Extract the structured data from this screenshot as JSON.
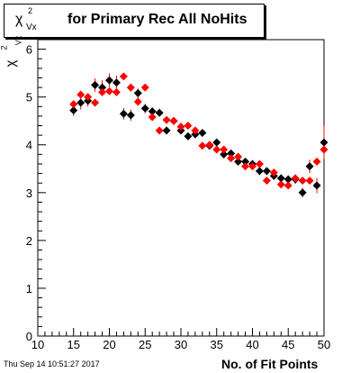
{
  "title": {
    "chi_symbol": "χ",
    "superscript": "2",
    "subscript": "Vx",
    "text": "for Primary Rec All NoHits"
  },
  "timestamp": "Thu Sep 14 10:51:27 2017",
  "colors": {
    "series_black": "#000000",
    "series_red": "#ff0000",
    "error_bar": "#ff0000"
  },
  "chart_data": {
    "type": "scatter",
    "xlabel": "No. of Fit Points",
    "ylabel_chi": "χ",
    "ylabel_sup": "2",
    "ylabel_sub": "Vx",
    "xlim": [
      10,
      50
    ],
    "ylim": [
      0,
      6.2
    ],
    "xticks": [
      "10",
      "15",
      "20",
      "25",
      "30",
      "35",
      "40",
      "45",
      "50"
    ],
    "yticks": [
      "0",
      "1",
      "2",
      "3",
      "4",
      "5",
      "6"
    ],
    "grid": false,
    "legend": "none",
    "series": [
      {
        "color": "black",
        "x": [
          15,
          16,
          17,
          18,
          19,
          20,
          21,
          22,
          23,
          24,
          25,
          26,
          27,
          28,
          29,
          30,
          31,
          32,
          33,
          34,
          35,
          36,
          37,
          38,
          39,
          40,
          41,
          42,
          43,
          44,
          45,
          46,
          47,
          48,
          49,
          50
        ],
        "y": [
          4.72,
          4.88,
          4.92,
          5.25,
          5.2,
          5.35,
          5.3,
          4.65,
          4.62,
          5.08,
          4.76,
          4.7,
          4.67,
          4.3,
          4.5,
          4.3,
          4.18,
          4.22,
          4.25,
          3.98,
          4.05,
          3.8,
          3.82,
          3.65,
          3.65,
          3.6,
          3.45,
          3.45,
          3.35,
          3.3,
          3.28,
          3.28,
          3.0,
          3.55,
          3.15,
          4.05
        ],
        "err": [
          0.12,
          0.14,
          0.12,
          0.14,
          0.15,
          0.14,
          0.15,
          0.12,
          0.12,
          0.1,
          0.1,
          0.08,
          0.08,
          0.08,
          0.08,
          0.08,
          0.08,
          0.06,
          0.06,
          0.06,
          0.06,
          0.06,
          0.06,
          0.06,
          0.06,
          0.08,
          0.08,
          0.08,
          0.08,
          0.08,
          0.08,
          0.1,
          0.1,
          0.14,
          0.16,
          0.35
        ]
      },
      {
        "color": "red",
        "x": [
          15,
          16,
          17,
          18,
          19,
          20,
          21,
          22,
          23,
          24,
          25,
          26,
          27,
          28,
          29,
          30,
          31,
          32,
          33,
          34,
          35,
          36,
          37,
          38,
          39,
          40,
          41,
          42,
          43,
          44,
          45,
          46,
          47,
          48,
          49,
          50
        ],
        "y": [
          4.85,
          5.05,
          5.0,
          4.88,
          5.1,
          5.12,
          5.1,
          5.43,
          5.2,
          4.9,
          5.2,
          4.58,
          4.3,
          4.52,
          4.5,
          4.38,
          4.4,
          4.3,
          3.98,
          4.0,
          3.9,
          3.9,
          3.72,
          3.75,
          3.55,
          3.55,
          3.6,
          3.25,
          3.42,
          3.17,
          3.15,
          3.3,
          3.25,
          3.25,
          3.65,
          3.9
        ]
      }
    ]
  }
}
